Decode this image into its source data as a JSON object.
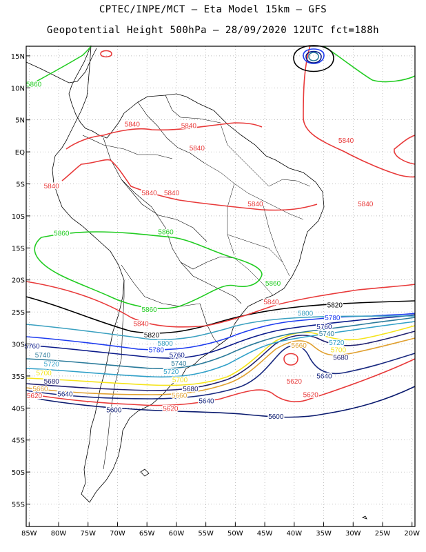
{
  "header": {
    "title_line1": "CPTEC/INPE/MCT –  Eta Model 15km – GFS",
    "title_line2": "Geopotential Height 500hPa – 28/09/2020 12UTC fct=188h"
  },
  "map": {
    "lon_ticks": [
      "85W",
      "80W",
      "75W",
      "70W",
      "65W",
      "60W",
      "55W",
      "50W",
      "45W",
      "40W",
      "35W",
      "30W",
      "25W",
      "20W"
    ],
    "lat_ticks": [
      "15N",
      "10N",
      "5N",
      "EQ",
      "5S",
      "10S",
      "15S",
      "20S",
      "25S",
      "30S",
      "35S",
      "40S",
      "45S",
      "50S",
      "55S"
    ],
    "grid": "dotted",
    "lon_range": [
      -85.5,
      -19.5
    ],
    "lat_range": [
      16.5,
      -58.5
    ]
  },
  "contours": {
    "colors": {
      "5580": "#e8a020",
      "5600": "#0a1a6e",
      "5620": "#e83a3a",
      "5640": "#1a2a80",
      "5660": "#e0a030",
      "5680": "#202070",
      "5700": "#f5e41a",
      "5720": "#30a0c8",
      "5740": "#2a7a9a",
      "5760": "#0a1a8a",
      "5780": "#1e3cf0",
      "5800": "#3aa0c0",
      "5820": "#000000",
      "5840": "#e83a3a",
      "5860": "#22cc22"
    },
    "labels": [
      {
        "text": "5840",
        "level": "5840",
        "lon": -67.5,
        "lat": 4.3
      },
      {
        "text": "5840",
        "level": "5840",
        "lon": -57.9,
        "lat": 4.1
      },
      {
        "text": "5840",
        "level": "5840",
        "lon": -56.5,
        "lat": 0.6
      },
      {
        "text": "5840",
        "level": "5840",
        "lon": -81.2,
        "lat": -5.3
      },
      {
        "text": "5840",
        "level": "5840",
        "lon": -64.6,
        "lat": -6.4
      },
      {
        "text": "5840",
        "level": "5840",
        "lon": -60.8,
        "lat": -6.4
      },
      {
        "text": "5840",
        "level": "5840",
        "lon": -31.2,
        "lat": 1.8
      },
      {
        "text": "5840",
        "level": "5840",
        "lon": -46.6,
        "lat": -8.1
      },
      {
        "text": "5840",
        "level": "5840",
        "lon": -27.9,
        "lat": -8.1
      },
      {
        "text": "5840",
        "level": "5840",
        "lon": -66.0,
        "lat": -26.8
      },
      {
        "text": "5840",
        "level": "5840",
        "lon": -43.9,
        "lat": -23.4
      },
      {
        "text": "5860",
        "level": "5860",
        "lon": -84.2,
        "lat": 10.6
      },
      {
        "text": "5860",
        "level": "5860",
        "lon": -79.5,
        "lat": -12.7
      },
      {
        "text": "5860",
        "level": "5860",
        "lon": -61.8,
        "lat": -12.5
      },
      {
        "text": "5860",
        "level": "5860",
        "lon": -43.6,
        "lat": -20.5
      },
      {
        "text": "5860",
        "level": "5860",
        "lon": -64.6,
        "lat": -24.6
      },
      {
        "text": "5820",
        "level": "5820",
        "lon": -64.2,
        "lat": -28.6
      },
      {
        "text": "5820",
        "level": "5820",
        "lon": -33.1,
        "lat": -23.9
      },
      {
        "text": "5800",
        "level": "5800",
        "lon": -38.1,
        "lat": -25.2
      },
      {
        "text": "5800",
        "level": "5800",
        "lon": -61.9,
        "lat": -29.9
      },
      {
        "text": "5780",
        "level": "5780",
        "lon": -33.5,
        "lat": -25.9
      },
      {
        "text": "5780",
        "level": "5780",
        "lon": -63.4,
        "lat": -30.9
      },
      {
        "text": "5760",
        "level": "5760",
        "lon": -84.5,
        "lat": -30.3
      },
      {
        "text": "5760",
        "level": "5760",
        "lon": -59.9,
        "lat": -31.7
      },
      {
        "text": "5760",
        "level": "5760",
        "lon": -34.9,
        "lat": -27.3
      },
      {
        "text": "5740",
        "level": "5740",
        "lon": -82.7,
        "lat": -31.7
      },
      {
        "text": "5740",
        "level": "5740",
        "lon": -59.6,
        "lat": -33.0
      },
      {
        "text": "5740",
        "level": "5740",
        "lon": -34.5,
        "lat": -28.4
      },
      {
        "text": "5720",
        "level": "5720",
        "lon": -81.2,
        "lat": -33.1
      },
      {
        "text": "5720",
        "level": "5720",
        "lon": -60.9,
        "lat": -34.3
      },
      {
        "text": "5720",
        "level": "5720",
        "lon": -32.8,
        "lat": -29.8
      },
      {
        "text": "5700",
        "level": "5700",
        "lon": -82.5,
        "lat": -34.5
      },
      {
        "text": "5700",
        "level": "5700",
        "lon": -59.4,
        "lat": -35.6
      },
      {
        "text": "5700",
        "level": "5700",
        "lon": -32.5,
        "lat": -30.9
      },
      {
        "text": "5680",
        "level": "5680",
        "lon": -81.2,
        "lat": -35.8
      },
      {
        "text": "5680",
        "level": "5680",
        "lon": -57.6,
        "lat": -37.0
      },
      {
        "text": "5680",
        "level": "5680",
        "lon": -32.1,
        "lat": -32.1
      },
      {
        "text": "5660",
        "level": "5660",
        "lon": -39.2,
        "lat": -30.2
      },
      {
        "text": "5660",
        "level": "5660",
        "lon": -59.5,
        "lat": -38.0
      },
      {
        "text": "5660",
        "level": "5660",
        "lon": -83.1,
        "lat": -37.0
      },
      {
        "text": "5640",
        "level": "5640",
        "lon": -78.9,
        "lat": -37.8
      },
      {
        "text": "5640",
        "level": "5640",
        "lon": -54.9,
        "lat": -38.9
      },
      {
        "text": "5640",
        "level": "5640",
        "lon": -34.9,
        "lat": -35.0
      },
      {
        "text": "5620",
        "level": "5620",
        "lon": -84.1,
        "lat": -38.1
      },
      {
        "text": "5620",
        "level": "5620",
        "lon": -40.0,
        "lat": -35.8
      },
      {
        "text": "5620",
        "level": "5620",
        "lon": -37.2,
        "lat": -37.9
      },
      {
        "text": "5620",
        "level": "5620",
        "lon": -61.0,
        "lat": -40.1
      },
      {
        "text": "5600",
        "level": "5600",
        "lon": -70.6,
        "lat": -40.3
      },
      {
        "text": "5600",
        "level": "5600",
        "lon": -43.1,
        "lat": -41.3
      }
    ]
  }
}
